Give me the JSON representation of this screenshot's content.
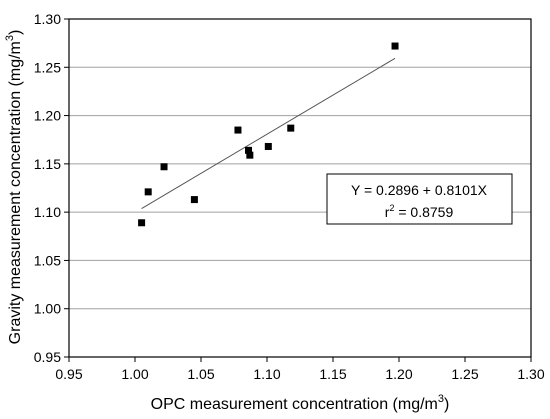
{
  "chart_data": {
    "type": "scatter",
    "xlabel_main": "OPC measurement concentration (mg/m",
    "xlabel_sup": "3",
    "xlabel_end": ")",
    "ylabel_main": "Gravity measurement concentration (mg/m",
    "ylabel_sup": "3",
    "ylabel_end": ")",
    "xlim": [
      0.95,
      1.3
    ],
    "ylim": [
      0.95,
      1.3
    ],
    "x_ticks": [
      "0.95",
      "1.00",
      "1.05",
      "1.10",
      "1.15",
      "1.20",
      "1.25",
      "1.30"
    ],
    "y_ticks": [
      "0.95",
      "1.00",
      "1.05",
      "1.10",
      "1.15",
      "1.20",
      "1.25",
      "1.30"
    ],
    "grid": "horizontal",
    "points": [
      {
        "x": 1.005,
        "y": 1.089
      },
      {
        "x": 1.01,
        "y": 1.121
      },
      {
        "x": 1.022,
        "y": 1.147
      },
      {
        "x": 1.045,
        "y": 1.113
      },
      {
        "x": 1.078,
        "y": 1.185
      },
      {
        "x": 1.086,
        "y": 1.164
      },
      {
        "x": 1.087,
        "y": 1.159
      },
      {
        "x": 1.101,
        "y": 1.168
      },
      {
        "x": 1.118,
        "y": 1.187
      },
      {
        "x": 1.197,
        "y": 1.272
      }
    ],
    "regression": {
      "intercept": 0.2896,
      "slope": 0.8101,
      "x_range": [
        1.005,
        1.197
      ],
      "equation_text": "Y = 0.2896 + 0.8101X",
      "r2_prefix": "r",
      "r2_sup": "2",
      "r2_suffix": " = 0.8759"
    },
    "colors": {
      "points": "#000000",
      "fit_line": "#555555",
      "grid": "#a0a0a0",
      "axis": "#000000"
    }
  }
}
